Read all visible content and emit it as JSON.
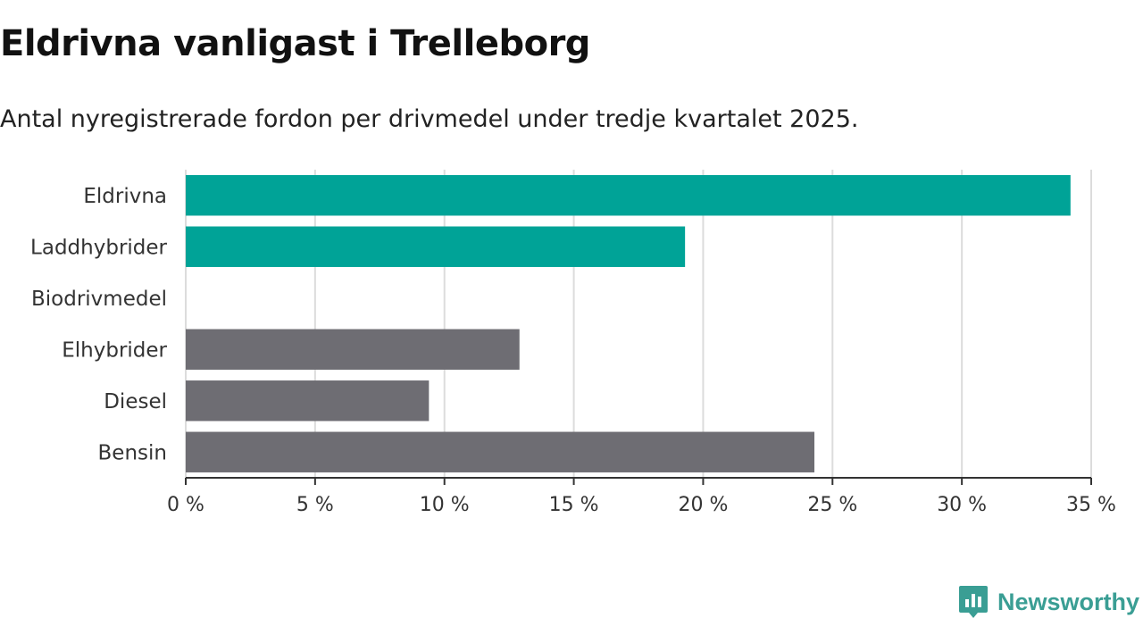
{
  "chart_data": {
    "type": "bar",
    "orientation": "horizontal",
    "title": "Eldrivna vanligast i Trelleborg",
    "subtitle": "Antal nyregistrerade fordon per drivmedel under tredje kvartalet 2025.",
    "categories": [
      "Eldrivna",
      "Laddhybrider",
      "Biodrivmedel",
      "Elhybrider",
      "Diesel",
      "Bensin"
    ],
    "values": [
      34.2,
      19.3,
      0,
      12.9,
      9.4,
      24.3
    ],
    "colors": [
      "#00a397",
      "#00a397",
      "#00a397",
      "#6e6d73",
      "#6e6d73",
      "#6e6d73"
    ],
    "xlim": [
      0,
      35
    ],
    "xticks": [
      0,
      5,
      10,
      15,
      20,
      25,
      30,
      35
    ],
    "xtick_labels": [
      "0 %",
      "5 %",
      "10 %",
      "15 %",
      "20 %",
      "25 %",
      "30 %",
      "35 %"
    ],
    "xlabel": "",
    "ylabel": "",
    "grid": true
  },
  "branding": {
    "name": "Newsworthy",
    "icon": "newsworthy-logo-icon",
    "color": "#3a9e94"
  }
}
